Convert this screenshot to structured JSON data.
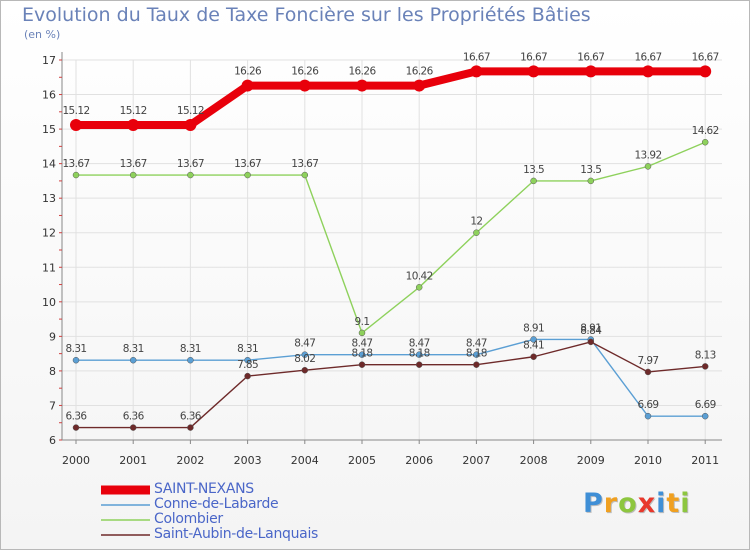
{
  "header": {
    "title": "Evolution du Taux de Taxe Foncière sur les Propriétés Bâties",
    "unit": "(en %)"
  },
  "chart_data": {
    "type": "line",
    "title": "Evolution du Taux de Taxe Foncière sur les Propriétés Bâties",
    "ylabel": "(en %)",
    "xlabel": "",
    "x": [
      "2000",
      "2001",
      "2002",
      "2003",
      "2004",
      "2005",
      "2006",
      "2007",
      "2008",
      "2009",
      "2010",
      "2011"
    ],
    "ylim": [
      6,
      17
    ],
    "yticks": [
      6,
      7,
      8,
      9,
      10,
      11,
      12,
      13,
      14,
      15,
      16,
      17
    ],
    "grid": true,
    "legend_position": "bottom-left",
    "series": [
      {
        "name": "SAINT-NEXANS",
        "color": "#e8000b",
        "values": [
          15.12,
          15.12,
          15.12,
          16.26,
          16.26,
          16.26,
          16.26,
          16.67,
          16.67,
          16.67,
          16.67,
          16.67
        ],
        "labels": [
          "15.12",
          "15.12",
          "15.12",
          "16.26",
          "16.26",
          "16.26",
          "16.26",
          "16.67",
          "16.67",
          "16.67",
          "16.67",
          "16.67"
        ]
      },
      {
        "name": "Conne-de-Labarde",
        "color": "#5b9fd4",
        "values": [
          8.31,
          8.31,
          8.31,
          8.31,
          8.47,
          8.47,
          8.47,
          8.47,
          8.91,
          8.91,
          6.69,
          6.69
        ],
        "labels": [
          "8.31",
          "8.31",
          "8.31",
          "8.31",
          "8.47",
          "8.47",
          "8.47",
          "8.47",
          "8.91",
          "8.91",
          "6.69",
          "6.69"
        ]
      },
      {
        "name": "Colombier",
        "color": "#8ed15c",
        "values": [
          13.67,
          13.67,
          13.67,
          13.67,
          13.67,
          9.1,
          10.42,
          12,
          13.5,
          13.5,
          13.92,
          14.62
        ],
        "labels": [
          "13.67",
          "13.67",
          "13.67",
          "13.67",
          "13.67",
          "9.1",
          "10.42",
          "12",
          "13.5",
          "13.5",
          "13.92",
          "14.62"
        ]
      },
      {
        "name": "Saint-Aubin-de-Lanquais",
        "color": "#6e2a2a",
        "values": [
          6.36,
          6.36,
          6.36,
          7.85,
          8.02,
          8.18,
          8.18,
          8.18,
          8.41,
          8.84,
          7.97,
          8.13
        ],
        "labels": [
          "6.36",
          "6.36",
          "6.36",
          "7.85",
          "8.02",
          "8.18",
          "8.18",
          "8.18",
          "8.41",
          "8.84",
          "7.97",
          "8.13"
        ]
      }
    ]
  },
  "brand": {
    "letters": [
      "P",
      "r",
      "o",
      "x",
      "i",
      "t",
      "i"
    ],
    "colors": [
      "#3f8fd6",
      "#f0a020",
      "#8dc63f",
      "#e8382c",
      "#3f8fd6",
      "#f0a020",
      "#8dc63f"
    ]
  }
}
